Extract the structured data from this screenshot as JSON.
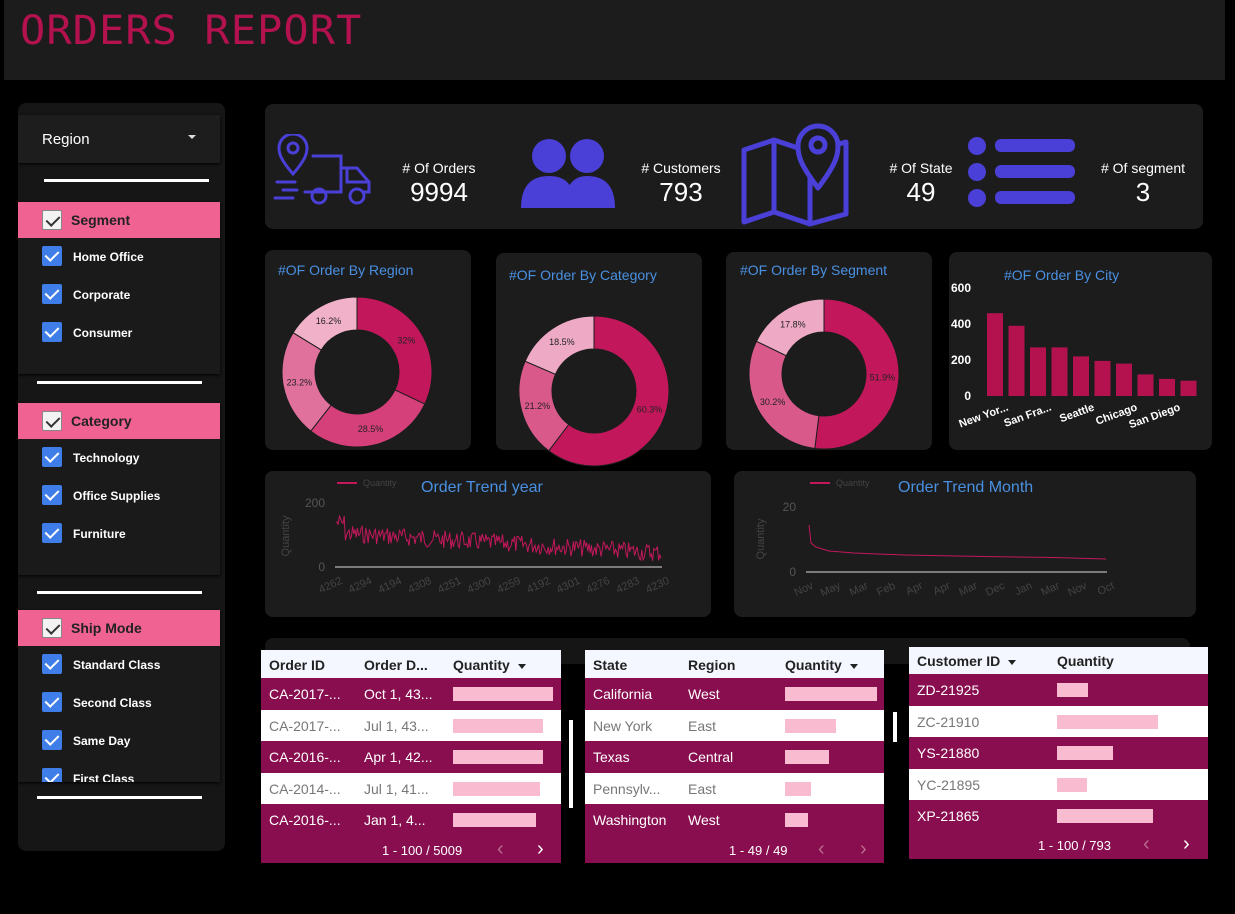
{
  "header": {
    "title": "ORDERS REPORT"
  },
  "sidebar": {
    "region": {
      "label": "Region"
    },
    "segment": {
      "title": "Segment",
      "items": [
        "Home Office",
        "Corporate",
        "Consumer"
      ]
    },
    "category": {
      "title": "Category",
      "items": [
        "Technology",
        "Office Supplies",
        "Furniture"
      ]
    },
    "ship_mode": {
      "title": "Ship Mode",
      "items": [
        "Standard Class",
        "Second Class",
        "Same Day",
        "First Class"
      ]
    }
  },
  "kpis": [
    {
      "label": "# Of Orders",
      "value": "9994",
      "icon": "truck-location-icon"
    },
    {
      "label": "# Customers",
      "value": "793",
      "icon": "users-icon"
    },
    {
      "label": "# Of State",
      "value": "49",
      "icon": "map-pin-icon"
    },
    {
      "label": "# Of segment",
      "value": "3",
      "icon": "list-icon"
    }
  ],
  "charts": {
    "region_title": "#OF Order By Region",
    "category_title": "#OF Order By Category",
    "segment_title": "#OF Order By Segment",
    "city_title": "#OF Order By City",
    "trend_year_title": "Order Trend year",
    "trend_month_title": "Order Trend Month",
    "legend_label": "Quantity",
    "axis_label": "Quantity"
  },
  "chart_data": [
    {
      "type": "pie",
      "title": "#OF Order By Region",
      "labels": [
        "32%",
        "28.5%",
        "23.2%",
        "16.2%"
      ],
      "values": [
        32,
        28.5,
        23.2,
        16.2
      ],
      "colors": [
        "#c2185b",
        "#d6407a",
        "#e0719c",
        "#f1b2c9"
      ]
    },
    {
      "type": "pie",
      "title": "#OF Order By Category",
      "labels": [
        "60.3%",
        "21.2%",
        "18.5%"
      ],
      "values": [
        60.3,
        21.2,
        18.5
      ],
      "colors": [
        "#c2185b",
        "#d95a8a",
        "#eeaac4"
      ]
    },
    {
      "type": "pie",
      "title": "#OF Order By Segment",
      "labels": [
        "51.9%",
        "30.2%",
        "17.8%"
      ],
      "values": [
        51.9,
        30.2,
        17.8
      ],
      "colors": [
        "#c2185b",
        "#d95a8a",
        "#eeaac4"
      ]
    },
    {
      "type": "bar",
      "title": "#OF Order By City",
      "categories": [
        "New Yor...",
        "",
        "San Fra...",
        "",
        "Seattle",
        "",
        "Chicago",
        "",
        "San Diego",
        ""
      ],
      "values": [
        460,
        390,
        270,
        270,
        220,
        195,
        180,
        120,
        95,
        85
      ],
      "yticks": [
        "600",
        "400",
        "200",
        "0"
      ],
      "ylim": [
        0,
        600
      ],
      "color": "#b3124f"
    },
    {
      "type": "line",
      "title": "Order Trend year",
      "series": [
        {
          "name": "Quantity"
        }
      ],
      "xticks": [
        "4262",
        "4294",
        "4194",
        "4308",
        "4251",
        "4300",
        "4259",
        "4192",
        "4301",
        "4276",
        "4283",
        "4230"
      ],
      "yticks": [
        "200",
        "0"
      ],
      "ylabel": "Quantity"
    },
    {
      "type": "line",
      "title": "Order Trend Month",
      "series": [
        {
          "name": "Quantity"
        }
      ],
      "xticks": [
        "Nov",
        "May",
        "Mar",
        "Feb",
        "Apr",
        "Apr",
        "Mar",
        "Dec",
        "Jan",
        "Mar",
        "Nov",
        "Oct"
      ],
      "yticks": [
        "20",
        "0"
      ],
      "ylabel": "Quantity"
    }
  ],
  "table_orders": {
    "headers": [
      "Order ID",
      "Order D...",
      "Quantity"
    ],
    "rows": [
      {
        "id": "CA-2017-...",
        "date": "Oct 1, 43...",
        "q": 1.0
      },
      {
        "id": "CA-2017-...",
        "date": "Jul 1, 43...",
        "q": 0.9
      },
      {
        "id": "CA-2016-...",
        "date": "Apr 1, 42...",
        "q": 0.9
      },
      {
        "id": "CA-2014-...",
        "date": "Jul 1, 41...",
        "q": 0.87
      },
      {
        "id": "CA-2016-...",
        "date": "Jan 1, 4...",
        "q": 0.83
      }
    ],
    "pager": "1 - 100 / 5009"
  },
  "table_states": {
    "headers": [
      "State",
      "Region",
      "Quantity"
    ],
    "rows": [
      {
        "state": "California",
        "region": "West",
        "q": 1.0
      },
      {
        "state": "New York",
        "region": "East",
        "q": 0.55
      },
      {
        "state": "Texas",
        "region": "Central",
        "q": 0.48
      },
      {
        "state": "Pennsylv...",
        "region": "East",
        "q": 0.28
      },
      {
        "state": "Washington",
        "region": "West",
        "q": 0.25
      }
    ],
    "pager": "1 - 49 / 49"
  },
  "table_customers": {
    "headers": [
      "Customer ID",
      "Quantity"
    ],
    "rows": [
      {
        "id": "ZD-21925",
        "q": 0.31
      },
      {
        "id": "ZC-21910",
        "q": 1.0
      },
      {
        "id": "YS-21880",
        "q": 0.55
      },
      {
        "id": "YC-21895",
        "q": 0.3
      },
      {
        "id": "XP-21865",
        "q": 0.95
      }
    ],
    "pager": "1 - 100 / 793"
  }
}
